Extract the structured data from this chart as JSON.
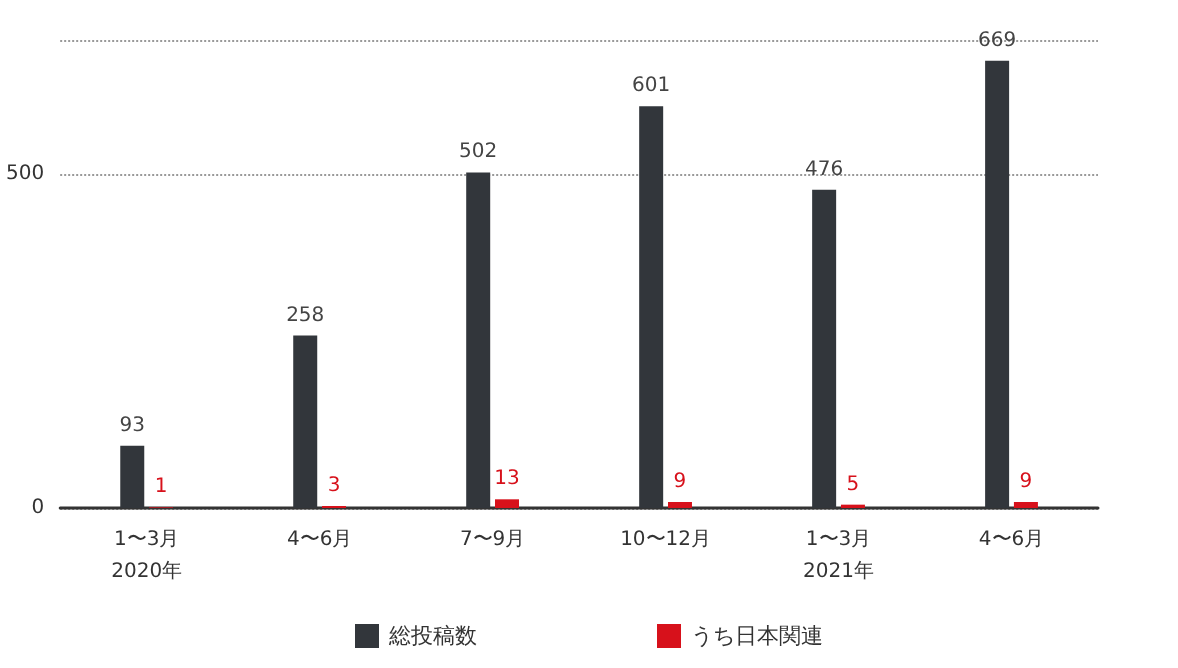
{
  "chart_data": {
    "type": "bar",
    "categories": [
      "1〜3月\n2020年",
      "4〜6月",
      "7〜9月",
      "10〜12月",
      "1〜3月\n2021年",
      "4〜6月"
    ],
    "series": [
      {
        "name": "総投稿数",
        "color": "#32363b",
        "values": [
          93,
          258,
          502,
          601,
          476,
          669
        ]
      },
      {
        "name": "うち日本関連",
        "color": "#d7111b",
        "values": [
          1,
          3,
          13,
          9,
          5,
          9
        ]
      }
    ],
    "ylim": [
      0,
      700
    ],
    "yticks": [
      0,
      500
    ],
    "grid": "y",
    "legend": "bottom",
    "data_labels": true
  }
}
